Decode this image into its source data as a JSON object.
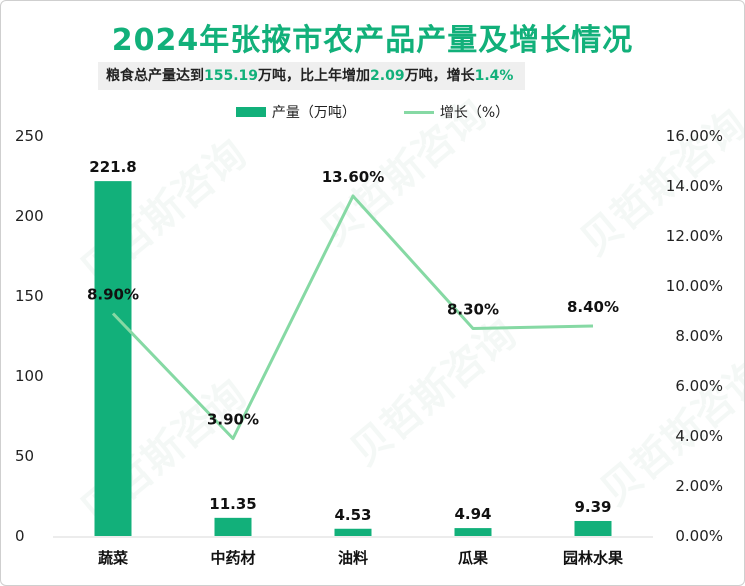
{
  "title": "2024年张掖市农产品产量及增长情况",
  "subtitle": {
    "p1": "粮食总产量达到",
    "v1": "155.19",
    "p2": "万吨，比上年增加",
    "v2": "2.09",
    "p3": "万吨，增长",
    "v3": "1.4%"
  },
  "legend": {
    "bar": "产量（万吨）",
    "line": "增长（%）"
  },
  "watermark": "贝哲斯咨询",
  "colors": {
    "bar": "#12b07a",
    "line": "#86d9a4",
    "title": "#12b07a"
  },
  "chart_data": {
    "type": "bar+line",
    "title": "2024年张掖市农产品产量及增长情况",
    "categories": [
      "蔬菜",
      "中药材",
      "油料",
      "瓜果",
      "园林水果"
    ],
    "series": [
      {
        "name": "产量（万吨）",
        "type": "bar",
        "axis": "left",
        "values": [
          221.8,
          11.35,
          4.53,
          4.94,
          9.39
        ],
        "labels": [
          "221.8",
          "11.35",
          "4.53",
          "4.94",
          "9.39"
        ]
      },
      {
        "name": "增长（%）",
        "type": "line",
        "axis": "right",
        "values": [
          8.9,
          3.9,
          13.6,
          8.3,
          8.4
        ],
        "labels": [
          "8.90%",
          "3.90%",
          "13.60%",
          "8.30%",
          "8.40%"
        ]
      }
    ],
    "y_left": {
      "range": [
        0,
        250
      ],
      "ticks": [
        "0",
        "50",
        "100",
        "150",
        "200",
        "250"
      ]
    },
    "y_right": {
      "range": [
        0,
        16
      ],
      "ticks": [
        "0.00%",
        "2.00%",
        "4.00%",
        "6.00%",
        "8.00%",
        "10.00%",
        "12.00%",
        "14.00%",
        "16.00%"
      ]
    },
    "legend_position": "top-center",
    "grid": false
  }
}
